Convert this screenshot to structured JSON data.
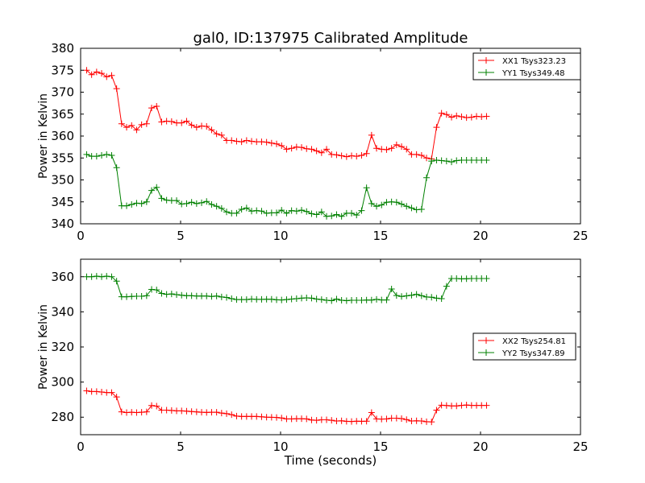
{
  "chart_data": [
    {
      "type": "line",
      "title": "gal0, ID:137975 Calibrated Amplitude",
      "xlabel": "",
      "ylabel": "Power in Kelvin",
      "xlim": [
        0,
        25
      ],
      "ylim": [
        340,
        380
      ],
      "xticks": [
        0,
        5,
        10,
        15,
        20,
        25
      ],
      "yticks": [
        340,
        345,
        350,
        355,
        360,
        365,
        370,
        375,
        380
      ],
      "legend_position": "top-right",
      "x": [
        0.3,
        0.55,
        0.8,
        1.05,
        1.3,
        1.55,
        1.8,
        2.05,
        2.3,
        2.55,
        2.8,
        3.05,
        3.3,
        3.55,
        3.8,
        4.05,
        4.3,
        4.55,
        4.8,
        5.05,
        5.3,
        5.55,
        5.8,
        6.05,
        6.3,
        6.55,
        6.8,
        7.05,
        7.3,
        7.55,
        7.8,
        8.05,
        8.3,
        8.55,
        8.8,
        9.05,
        9.3,
        9.55,
        9.8,
        10.05,
        10.3,
        10.55,
        10.8,
        11.05,
        11.3,
        11.55,
        11.8,
        12.05,
        12.3,
        12.55,
        12.8,
        13.05,
        13.3,
        13.55,
        13.8,
        14.05,
        14.3,
        14.55,
        14.8,
        15.05,
        15.3,
        15.55,
        15.8,
        16.05,
        16.3,
        16.55,
        16.8,
        17.05,
        17.3,
        17.55,
        17.8,
        18.05,
        18.3,
        18.55,
        18.8,
        19.05,
        19.3,
        19.55,
        19.8,
        20.05,
        20.3
      ],
      "series": [
        {
          "name": "XX1 Tsys323.23",
          "color": "#ff0000",
          "values": [
            375.0,
            374.0,
            374.6,
            374.3,
            373.5,
            373.8,
            370.8,
            362.8,
            362.0,
            362.4,
            361.4,
            362.6,
            362.8,
            366.4,
            366.8,
            363.2,
            363.4,
            363.3,
            363.0,
            363.0,
            363.4,
            362.5,
            362.0,
            362.3,
            362.2,
            361.4,
            360.5,
            360.2,
            359.0,
            359.0,
            358.8,
            358.7,
            359.0,
            358.8,
            358.7,
            358.7,
            358.6,
            358.4,
            358.2,
            357.8,
            357.0,
            357.2,
            357.5,
            357.4,
            357.1,
            357.0,
            356.6,
            356.2,
            357.0,
            355.8,
            355.7,
            355.5,
            355.3,
            355.5,
            355.4,
            355.6,
            356.0,
            360.2,
            357.2,
            357.0,
            356.9,
            357.2,
            358.0,
            357.6,
            357.0,
            355.8,
            355.8,
            355.6,
            355.0,
            354.8,
            362.0,
            365.2,
            364.9,
            364.3,
            364.6,
            364.4,
            364.2,
            364.3,
            364.5,
            364.4,
            364.5
          ]
        },
        {
          "name": "YY1 Tsys349.48",
          "color": "#008000",
          "values": [
            355.8,
            355.4,
            355.4,
            355.6,
            355.8,
            355.6,
            352.8,
            344.1,
            344.1,
            344.4,
            344.7,
            344.6,
            345.0,
            347.6,
            348.3,
            345.8,
            345.4,
            345.3,
            345.3,
            344.5,
            344.6,
            344.9,
            344.6,
            344.8,
            345.1,
            344.4,
            344.0,
            343.5,
            342.7,
            342.4,
            342.4,
            343.3,
            343.6,
            342.9,
            343.0,
            342.9,
            342.4,
            342.5,
            342.5,
            343.1,
            342.4,
            343.0,
            342.9,
            343.1,
            342.8,
            342.3,
            342.1,
            342.7,
            341.7,
            341.8,
            342.1,
            341.7,
            342.4,
            342.4,
            342.0,
            343.0,
            348.2,
            344.6,
            344.0,
            344.3,
            344.9,
            345.0,
            344.9,
            344.5,
            344.0,
            343.6,
            343.2,
            343.3,
            350.5,
            354.3,
            354.5,
            354.4,
            354.3,
            354.1,
            354.4,
            354.5,
            354.5,
            354.5,
            354.5,
            354.5,
            354.5
          ]
        }
      ]
    },
    {
      "type": "line",
      "title": "",
      "xlabel": "Time (seconds)",
      "ylabel": "Power in Kelvin",
      "xlim": [
        0,
        25
      ],
      "ylim": [
        270,
        370
      ],
      "xticks": [
        0,
        5,
        10,
        15,
        20,
        25
      ],
      "yticks": [
        280,
        300,
        320,
        340,
        360
      ],
      "legend_position": "center-right",
      "x": [
        0.3,
        0.55,
        0.8,
        1.05,
        1.3,
        1.55,
        1.8,
        2.05,
        2.3,
        2.55,
        2.8,
        3.05,
        3.3,
        3.55,
        3.8,
        4.05,
        4.3,
        4.55,
        4.8,
        5.05,
        5.3,
        5.55,
        5.8,
        6.05,
        6.3,
        6.55,
        6.8,
        7.05,
        7.3,
        7.55,
        7.8,
        8.05,
        8.3,
        8.55,
        8.8,
        9.05,
        9.3,
        9.55,
        9.8,
        10.05,
        10.3,
        10.55,
        10.8,
        11.05,
        11.3,
        11.55,
        11.8,
        12.05,
        12.3,
        12.55,
        12.8,
        13.05,
        13.3,
        13.55,
        13.8,
        14.05,
        14.3,
        14.55,
        14.8,
        15.05,
        15.3,
        15.55,
        15.8,
        16.05,
        16.3,
        16.55,
        16.8,
        17.05,
        17.3,
        17.55,
        17.8,
        18.05,
        18.3,
        18.55,
        18.8,
        19.05,
        19.3,
        19.55,
        19.8,
        20.05,
        20.3
      ],
      "series": [
        {
          "name": "XX2 Tsys254.81",
          "color": "#ff0000",
          "values": [
            295.0,
            294.6,
            294.6,
            294.3,
            294.0,
            294.0,
            291.5,
            283.0,
            282.6,
            282.8,
            282.6,
            282.8,
            283.0,
            286.6,
            286.3,
            284.0,
            284.0,
            283.8,
            283.6,
            283.6,
            283.4,
            283.2,
            283.0,
            282.8,
            282.7,
            282.8,
            282.8,
            282.3,
            282.0,
            281.4,
            280.6,
            280.4,
            280.4,
            280.4,
            280.4,
            280.2,
            280.0,
            279.9,
            279.8,
            279.5,
            279.0,
            279.0,
            279.1,
            279.1,
            279.0,
            278.4,
            278.2,
            278.5,
            278.5,
            278.2,
            277.8,
            277.9,
            277.6,
            277.5,
            277.7,
            277.6,
            277.7,
            282.6,
            279.0,
            278.9,
            279.0,
            279.4,
            279.4,
            279.2,
            278.6,
            277.8,
            277.9,
            277.8,
            277.4,
            277.3,
            284.0,
            286.8,
            286.6,
            286.4,
            286.4,
            286.7,
            286.9,
            286.7,
            286.7,
            286.7,
            286.7
          ]
        },
        {
          "name": "YY2 Tsys347.89",
          "color": "#008000",
          "values": [
            360.0,
            360.0,
            360.3,
            360.0,
            360.3,
            360.0,
            357.5,
            348.6,
            348.6,
            348.8,
            348.9,
            348.9,
            349.2,
            352.8,
            352.5,
            350.5,
            350.0,
            350.2,
            349.8,
            349.5,
            349.2,
            349.2,
            349.0,
            349.0,
            349.0,
            348.8,
            349.0,
            348.5,
            348.2,
            347.5,
            347.0,
            347.0,
            347.0,
            347.3,
            347.1,
            347.1,
            347.2,
            347.2,
            346.9,
            346.8,
            347.0,
            347.3,
            347.5,
            347.8,
            348.0,
            347.8,
            347.3,
            347.0,
            346.6,
            346.4,
            347.3,
            346.6,
            346.4,
            346.6,
            346.6,
            346.6,
            346.7,
            346.7,
            347.1,
            346.8,
            346.8,
            353.0,
            349.3,
            348.8,
            349.1,
            349.5,
            350.0,
            349.2,
            348.5,
            348.3,
            347.8,
            347.5,
            354.6,
            359.0,
            359.0,
            358.8,
            358.9,
            359.0,
            359.0,
            359.0,
            359.0
          ]
        }
      ]
    }
  ]
}
